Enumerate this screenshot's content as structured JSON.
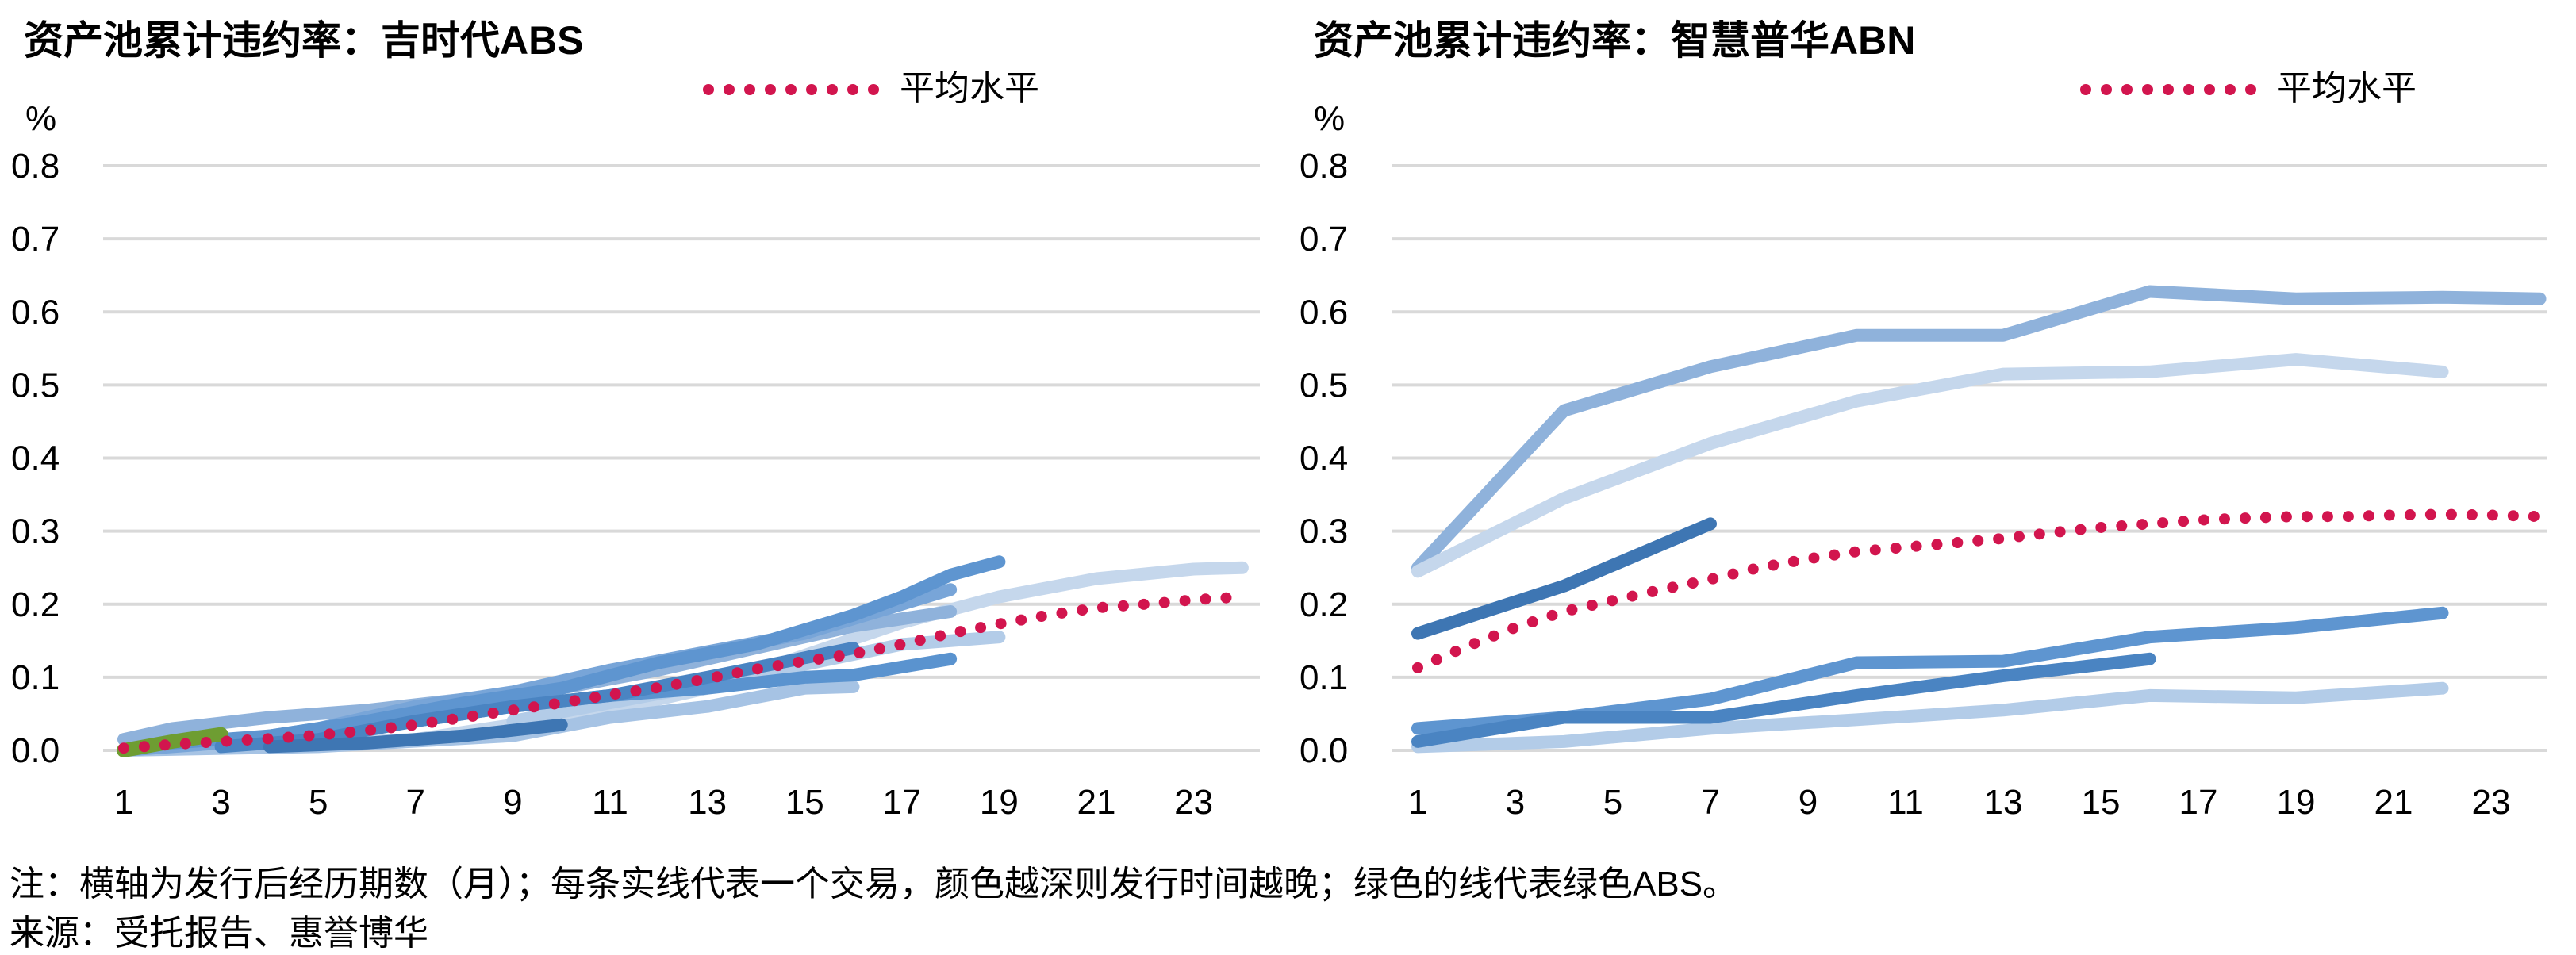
{
  "chart_data": [
    {
      "type": "line",
      "title": "资产池累计违约率：吉时代ABS",
      "ylabel": "%",
      "ylim": [
        0,
        0.8
      ],
      "yticks": [
        "0.0",
        "0.1",
        "0.2",
        "0.3",
        "0.4",
        "0.5",
        "0.6",
        "0.7",
        "0.8"
      ],
      "xlim": [
        1,
        24
      ],
      "xticks": [
        "1",
        "3",
        "5",
        "7",
        "9",
        "11",
        "13",
        "15",
        "17",
        "19",
        "21",
        "23"
      ],
      "grid": true,
      "legend": {
        "position": "top-center",
        "entries": [
          "平均水平"
        ]
      },
      "series": [
        {
          "color": "#C5D7EC",
          "width": 16,
          "points": [
            [
              3,
              0.005
            ],
            [
              7,
              0.015
            ],
            [
              11,
              0.055
            ],
            [
              13,
              0.085
            ],
            [
              15,
              0.13
            ],
            [
              17,
              0.175
            ],
            [
              19,
              0.21
            ],
            [
              21,
              0.235
            ],
            [
              23,
              0.248
            ],
            [
              24,
              0.25
            ]
          ]
        },
        {
          "color": "#A6C3E4",
          "width": 16,
          "points": [
            [
              1,
              0.0
            ],
            [
              5,
              0.005
            ],
            [
              9,
              0.02
            ],
            [
              11,
              0.045
            ],
            [
              13,
              0.06
            ],
            [
              15,
              0.085
            ],
            [
              16,
              0.087
            ]
          ]
        },
        {
          "color": "#B3CCE8",
          "width": 16,
          "points": [
            [
              9,
              0.04
            ],
            [
              13,
              0.09
            ],
            [
              17,
              0.145
            ],
            [
              19,
              0.155
            ]
          ]
        },
        {
          "color": "#8FB2DB",
          "width": 16,
          "points": [
            [
              1,
              0.015
            ],
            [
              2,
              0.03
            ],
            [
              4,
              0.045
            ],
            [
              6,
              0.055
            ],
            [
              8,
              0.07
            ],
            [
              10,
              0.085
            ],
            [
              12,
              0.11
            ],
            [
              14,
              0.14
            ],
            [
              16,
              0.17
            ],
            [
              18,
              0.19
            ]
          ]
        },
        {
          "color": "#78A5D8",
          "width": 16,
          "points": [
            [
              1,
              0.0
            ],
            [
              3,
              0.01
            ],
            [
              5,
              0.03
            ],
            [
              7,
              0.06
            ],
            [
              9,
              0.08
            ],
            [
              11,
              0.11
            ],
            [
              13,
              0.135
            ],
            [
              15,
              0.16
            ],
            [
              17,
              0.2
            ],
            [
              18,
              0.22
            ]
          ]
        },
        {
          "color": "#5E95D0",
          "width": 16,
          "points": [
            [
              2,
              0.01
            ],
            [
              4,
              0.02
            ],
            [
              6,
              0.04
            ],
            [
              8,
              0.065
            ],
            [
              10,
              0.085
            ],
            [
              12,
              0.12
            ],
            [
              14,
              0.145
            ],
            [
              16,
              0.185
            ],
            [
              17,
              0.21
            ],
            [
              18,
              0.24
            ],
            [
              19,
              0.258
            ]
          ]
        },
        {
          "color": "#5A93CF",
          "width": 16,
          "points": [
            [
              7,
              0.04
            ],
            [
              9,
              0.06
            ],
            [
              11,
              0.075
            ],
            [
              13,
              0.085
            ],
            [
              15,
              0.1
            ],
            [
              16,
              0.103
            ],
            [
              18,
              0.125
            ]
          ]
        },
        {
          "color": "#4A84C2",
          "width": 16,
          "points": [
            [
              3,
              0.005
            ],
            [
              5,
              0.015
            ],
            [
              7,
              0.04
            ],
            [
              9,
              0.06
            ],
            [
              11,
              0.075
            ],
            [
              13,
              0.1
            ],
            [
              16,
              0.14
            ]
          ]
        },
        {
          "color": "#3E76B3",
          "width": 16,
          "points": [
            [
              4,
              0.005
            ],
            [
              6,
              0.01
            ],
            [
              8,
              0.02
            ],
            [
              10,
              0.035
            ]
          ]
        },
        {
          "color": "#6E9D32",
          "width": 18,
          "points": [
            [
              1,
              0.0
            ],
            [
              2,
              0.012
            ],
            [
              3,
              0.022
            ]
          ]
        }
      ],
      "average": {
        "name": "平均水平",
        "color": "#D2154E",
        "points": [
          [
            1,
            0.003
          ],
          [
            2,
            0.008
          ],
          [
            3,
            0.012
          ],
          [
            4,
            0.016
          ],
          [
            5,
            0.021
          ],
          [
            6,
            0.027
          ],
          [
            7,
            0.035
          ],
          [
            8,
            0.045
          ],
          [
            9,
            0.055
          ],
          [
            10,
            0.065
          ],
          [
            11,
            0.076
          ],
          [
            12,
            0.086
          ],
          [
            13,
            0.098
          ],
          [
            14,
            0.111
          ],
          [
            15,
            0.122
          ],
          [
            16,
            0.132
          ],
          [
            17,
            0.145
          ],
          [
            18,
            0.16
          ],
          [
            19,
            0.173
          ],
          [
            20,
            0.185
          ],
          [
            21,
            0.195
          ],
          [
            22,
            0.2
          ],
          [
            23,
            0.206
          ],
          [
            24,
            0.21
          ]
        ]
      }
    },
    {
      "type": "line",
      "title": "资产池累计违约率：智慧普华ABN",
      "ylabel": "%",
      "ylim": [
        0,
        0.8
      ],
      "yticks": [
        "0.0",
        "0.1",
        "0.2",
        "0.3",
        "0.4",
        "0.5",
        "0.6",
        "0.7",
        "0.8"
      ],
      "xlim": [
        1,
        24
      ],
      "xticks": [
        "1",
        "3",
        "5",
        "7",
        "9",
        "11",
        "13",
        "15",
        "17",
        "19",
        "21",
        "23"
      ],
      "grid": true,
      "legend": {
        "position": "top-center",
        "entries": [
          "平均水平"
        ]
      },
      "series": [
        {
          "color": "#8FB2DB",
          "width": 16,
          "points": [
            [
              1,
              0.25
            ],
            [
              4,
              0.465
            ],
            [
              7,
              0.525
            ],
            [
              10,
              0.568
            ],
            [
              13,
              0.568
            ],
            [
              16,
              0.628
            ],
            [
              19,
              0.618
            ],
            [
              22,
              0.62
            ],
            [
              24,
              0.618
            ]
          ]
        },
        {
          "color": "#C5D7EC",
          "width": 16,
          "points": [
            [
              1,
              0.245
            ],
            [
              4,
              0.345
            ],
            [
              7,
              0.42
            ],
            [
              10,
              0.478
            ],
            [
              13,
              0.515
            ],
            [
              16,
              0.518
            ],
            [
              19,
              0.535
            ],
            [
              22,
              0.518
            ]
          ]
        },
        {
          "color": "#B3CCE8",
          "width": 16,
          "points": [
            [
              1,
              0.005
            ],
            [
              4,
              0.012
            ],
            [
              7,
              0.03
            ],
            [
              10,
              0.042
            ],
            [
              13,
              0.055
            ],
            [
              16,
              0.075
            ],
            [
              19,
              0.072
            ],
            [
              22,
              0.085
            ]
          ]
        },
        {
          "color": "#5E95D0",
          "width": 16,
          "points": [
            [
              1,
              0.03
            ],
            [
              4,
              0.045
            ],
            [
              7,
              0.07
            ],
            [
              10,
              0.12
            ],
            [
              13,
              0.122
            ],
            [
              16,
              0.155
            ],
            [
              19,
              0.168
            ],
            [
              22,
              0.188
            ]
          ]
        },
        {
          "color": "#4A84C2",
          "width": 16,
          "points": [
            [
              1,
              0.012
            ],
            [
              4,
              0.045
            ],
            [
              7,
              0.045
            ],
            [
              10,
              0.075
            ],
            [
              13,
              0.102
            ],
            [
              16,
              0.125
            ]
          ]
        },
        {
          "color": "#3E76B3",
          "width": 16,
          "points": [
            [
              1,
              0.16
            ],
            [
              4,
              0.225
            ],
            [
              7,
              0.31
            ]
          ]
        }
      ],
      "average": {
        "name": "平均水平",
        "color": "#D2154E",
        "points": [
          [
            1,
            0.113
          ],
          [
            2,
            0.142
          ],
          [
            3,
            0.168
          ],
          [
            4,
            0.19
          ],
          [
            5,
            0.205
          ],
          [
            6,
            0.22
          ],
          [
            7,
            0.234
          ],
          [
            8,
            0.25
          ],
          [
            9,
            0.262
          ],
          [
            10,
            0.272
          ],
          [
            11,
            0.278
          ],
          [
            12,
            0.284
          ],
          [
            13,
            0.29
          ],
          [
            14,
            0.298
          ],
          [
            15,
            0.305
          ],
          [
            16,
            0.31
          ],
          [
            17,
            0.315
          ],
          [
            18,
            0.318
          ],
          [
            19,
            0.32
          ],
          [
            20,
            0.32
          ],
          [
            21,
            0.322
          ],
          [
            22,
            0.323
          ],
          [
            23,
            0.322
          ],
          [
            24,
            0.32
          ]
        ]
      }
    }
  ],
  "footnotes": {
    "note": "注：横轴为发行后经历期数（月）；每条实线代表一个交易，颜色越深则发行时间越晚；绿色的线代表绿色ABS。",
    "source": "来源：受托报告、惠誉博华"
  }
}
